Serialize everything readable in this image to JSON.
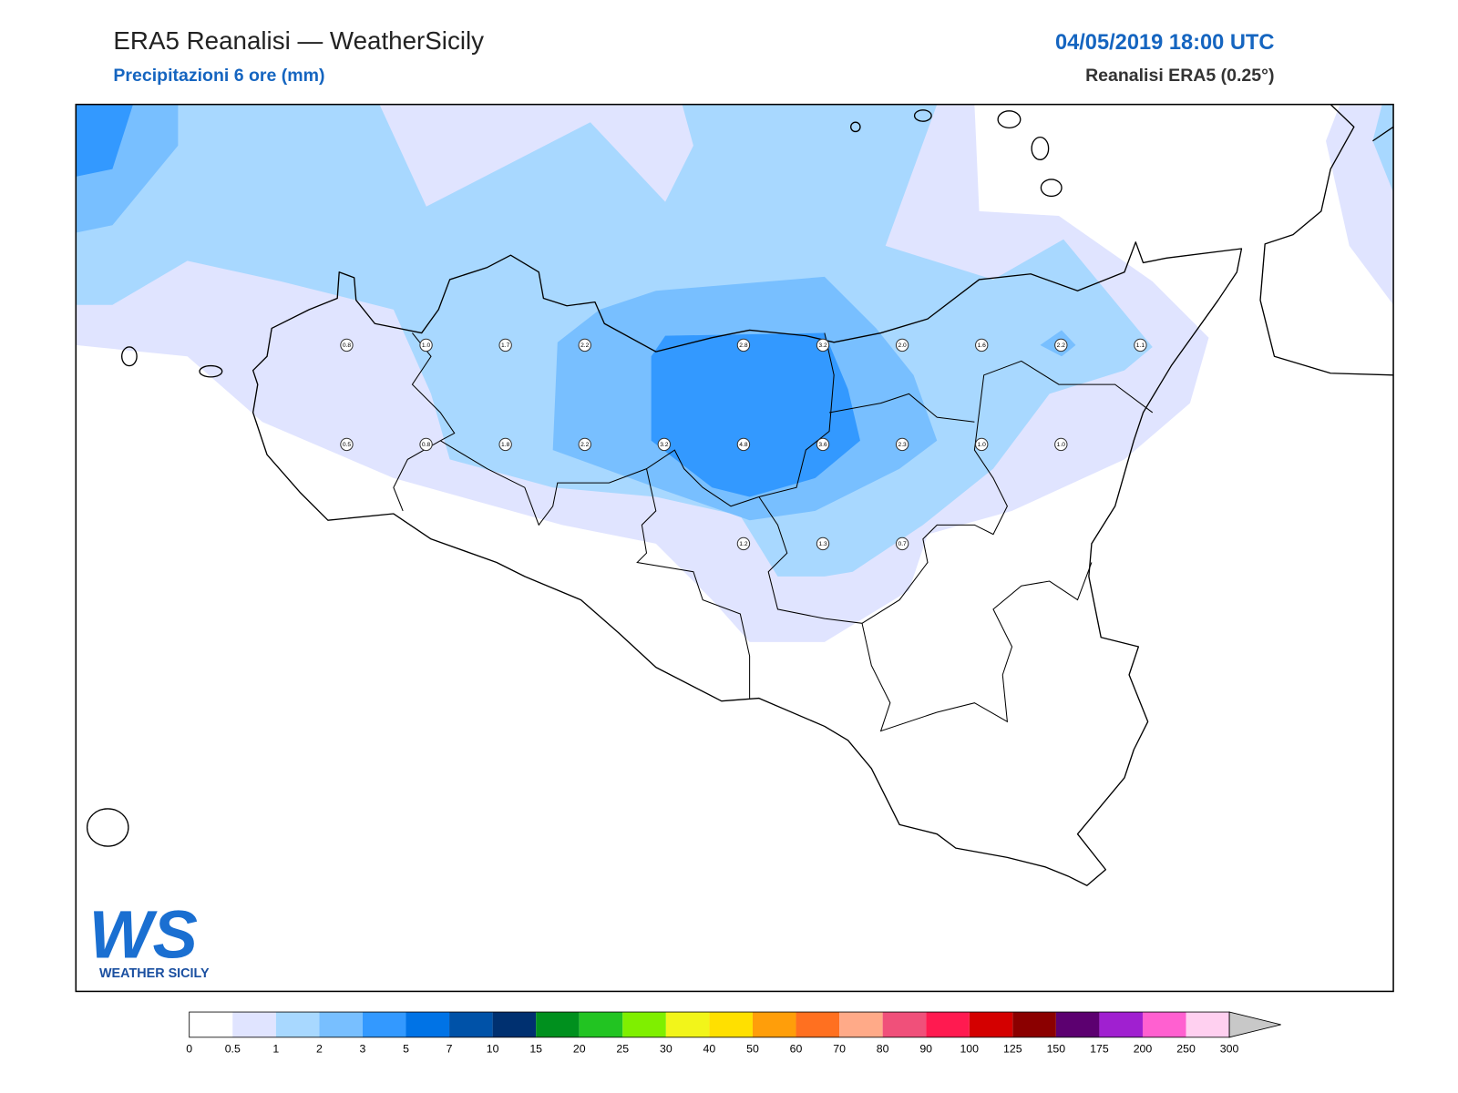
{
  "header": {
    "title": "ERA5 Reanalisi — WeatherSicily",
    "subtitle": "Precipitazioni 6 ore (mm)",
    "datetime": "04/05/2019 18:00 UTC",
    "source": "Reanalisi ERA5 (0.25°)"
  },
  "stations": {
    "rows": [
      [
        "0.8",
        "1.0",
        "1.7",
        "2.2",
        null,
        "2.8",
        "3.2",
        "2.0",
        "1.6",
        "2.2",
        "1.1"
      ],
      [
        "0.5",
        "0.8",
        "1.8",
        "2.2",
        "3.2",
        "4.8",
        "3.6",
        "2.3",
        "1.0",
        "1.0",
        null
      ],
      [
        null,
        null,
        null,
        null,
        null,
        "1.2",
        "1.3",
        "0.7",
        null,
        null,
        null
      ]
    ]
  },
  "logo": {
    "mark": "WS",
    "text": "WEATHER SICILY"
  },
  "colorbar": {
    "ticks": [
      "0",
      "0.5",
      "1",
      "2",
      "3",
      "5",
      "7",
      "10",
      "15",
      "20",
      "25",
      "30",
      "40",
      "50",
      "60",
      "70",
      "80",
      "90",
      "100",
      "125",
      "150",
      "175",
      "200",
      "250",
      "300"
    ],
    "colors": [
      "#ffffff",
      "#e0e4ff",
      "#a8d8ff",
      "#78bfff",
      "#3399ff",
      "#0073e6",
      "#0052a8",
      "#003070",
      "#00901e",
      "#22c422",
      "#7fef00",
      "#f2f51a",
      "#ffe000",
      "#ff9e0a",
      "#ff7020",
      "#ffaa88",
      "#f0507a",
      "#ff1a50",
      "#d40000",
      "#8b0000",
      "#5c0070",
      "#a020d0",
      "#ff60d0",
      "#ffd0f0"
    ]
  }
}
